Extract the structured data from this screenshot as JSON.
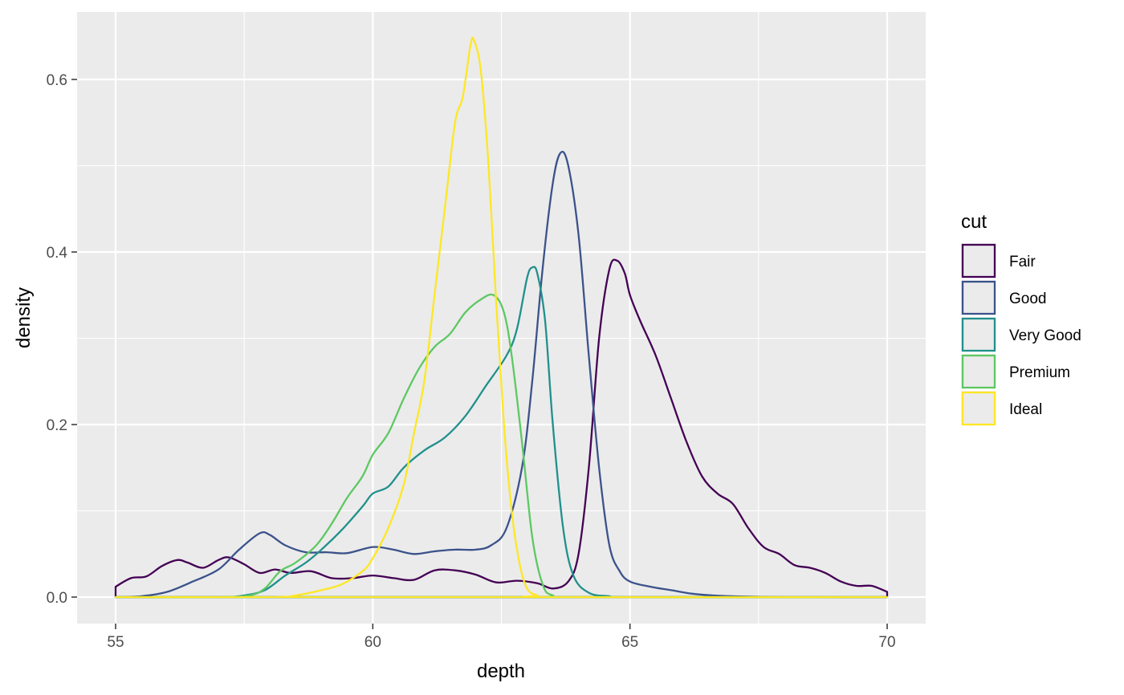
{
  "chart_data": {
    "type": "line",
    "xlabel": "depth",
    "ylabel": "density",
    "xlim": [
      55,
      70
    ],
    "ylim": [
      0,
      0.65
    ],
    "x_ticks": [
      55,
      60,
      65,
      70
    ],
    "x_tick_labels": [
      "55",
      "60",
      "65",
      "70"
    ],
    "y_ticks": [
      0.0,
      0.2,
      0.4,
      0.6
    ],
    "y_tick_labels": [
      "0.0",
      "0.2",
      "0.4",
      "0.6"
    ],
    "grid": true,
    "legend": {
      "title": "cut",
      "placement": "right"
    },
    "series": [
      {
        "name": "Fair",
        "color": "#440154",
        "points": [
          [
            55,
            0.012
          ],
          [
            55.3,
            0.022
          ],
          [
            55.6,
            0.024
          ],
          [
            55.9,
            0.036
          ],
          [
            56.2,
            0.043
          ],
          [
            56.4,
            0.04
          ],
          [
            56.7,
            0.034
          ],
          [
            57.0,
            0.043
          ],
          [
            57.2,
            0.046
          ],
          [
            57.5,
            0.038
          ],
          [
            57.8,
            0.028
          ],
          [
            58.1,
            0.032
          ],
          [
            58.4,
            0.028
          ],
          [
            58.8,
            0.03
          ],
          [
            59.2,
            0.022
          ],
          [
            59.6,
            0.022
          ],
          [
            60.0,
            0.025
          ],
          [
            60.4,
            0.022
          ],
          [
            60.8,
            0.02
          ],
          [
            61.2,
            0.031
          ],
          [
            61.6,
            0.031
          ],
          [
            62.0,
            0.026
          ],
          [
            62.4,
            0.017
          ],
          [
            62.8,
            0.019
          ],
          [
            63.2,
            0.016
          ],
          [
            63.5,
            0.01
          ],
          [
            63.8,
            0.018
          ],
          [
            64.0,
            0.05
          ],
          [
            64.2,
            0.15
          ],
          [
            64.4,
            0.3
          ],
          [
            64.6,
            0.38
          ],
          [
            64.75,
            0.39
          ],
          [
            64.9,
            0.375
          ],
          [
            65.0,
            0.35
          ],
          [
            65.2,
            0.32
          ],
          [
            65.5,
            0.28
          ],
          [
            65.8,
            0.23
          ],
          [
            66.1,
            0.18
          ],
          [
            66.4,
            0.14
          ],
          [
            66.7,
            0.12
          ],
          [
            67.0,
            0.108
          ],
          [
            67.3,
            0.08
          ],
          [
            67.6,
            0.058
          ],
          [
            67.9,
            0.05
          ],
          [
            68.2,
            0.037
          ],
          [
            68.5,
            0.034
          ],
          [
            68.8,
            0.028
          ],
          [
            69.1,
            0.018
          ],
          [
            69.4,
            0.013
          ],
          [
            69.7,
            0.013
          ],
          [
            70,
            0.006
          ]
        ]
      },
      {
        "name": "Good",
        "color": "#3b528b",
        "points": [
          [
            55,
            0.0
          ],
          [
            55.5,
            0.001
          ],
          [
            56.0,
            0.006
          ],
          [
            56.5,
            0.018
          ],
          [
            57.0,
            0.032
          ],
          [
            57.4,
            0.055
          ],
          [
            57.8,
            0.074
          ],
          [
            58.0,
            0.072
          ],
          [
            58.3,
            0.06
          ],
          [
            58.7,
            0.052
          ],
          [
            59.1,
            0.052
          ],
          [
            59.5,
            0.051
          ],
          [
            60.0,
            0.058
          ],
          [
            60.4,
            0.055
          ],
          [
            60.8,
            0.05
          ],
          [
            61.2,
            0.053
          ],
          [
            61.6,
            0.055
          ],
          [
            62.0,
            0.055
          ],
          [
            62.3,
            0.06
          ],
          [
            62.6,
            0.08
          ],
          [
            62.9,
            0.15
          ],
          [
            63.1,
            0.25
          ],
          [
            63.3,
            0.38
          ],
          [
            63.5,
            0.48
          ],
          [
            63.65,
            0.515
          ],
          [
            63.8,
            0.5
          ],
          [
            64.0,
            0.42
          ],
          [
            64.2,
            0.28
          ],
          [
            64.4,
            0.15
          ],
          [
            64.6,
            0.06
          ],
          [
            64.8,
            0.03
          ],
          [
            65.0,
            0.018
          ],
          [
            65.4,
            0.012
          ],
          [
            65.8,
            0.008
          ],
          [
            66.2,
            0.004
          ],
          [
            66.6,
            0.002
          ],
          [
            67,
            0.001
          ],
          [
            68,
            0.0
          ],
          [
            70,
            0.0
          ]
        ]
      },
      {
        "name": "Very Good",
        "color": "#21908c",
        "points": [
          [
            55,
            0.0
          ],
          [
            57.0,
            0.0
          ],
          [
            57.5,
            0.002
          ],
          [
            57.9,
            0.008
          ],
          [
            58.3,
            0.025
          ],
          [
            58.7,
            0.04
          ],
          [
            59.0,
            0.055
          ],
          [
            59.4,
            0.078
          ],
          [
            59.8,
            0.105
          ],
          [
            60.0,
            0.12
          ],
          [
            60.3,
            0.128
          ],
          [
            60.6,
            0.15
          ],
          [
            61.0,
            0.17
          ],
          [
            61.4,
            0.185
          ],
          [
            61.8,
            0.21
          ],
          [
            62.2,
            0.245
          ],
          [
            62.6,
            0.28
          ],
          [
            62.8,
            0.31
          ],
          [
            63.0,
            0.37
          ],
          [
            63.1,
            0.382
          ],
          [
            63.2,
            0.375
          ],
          [
            63.35,
            0.32
          ],
          [
            63.5,
            0.2
          ],
          [
            63.7,
            0.08
          ],
          [
            63.9,
            0.025
          ],
          [
            64.2,
            0.005
          ],
          [
            64.6,
            0.001
          ],
          [
            65,
            0.0
          ],
          [
            70,
            0.0
          ]
        ]
      },
      {
        "name": "Premium",
        "color": "#5dc863",
        "points": [
          [
            55,
            0.0
          ],
          [
            57.0,
            0.0
          ],
          [
            57.6,
            0.002
          ],
          [
            57.9,
            0.01
          ],
          [
            58.2,
            0.03
          ],
          [
            58.5,
            0.04
          ],
          [
            58.9,
            0.06
          ],
          [
            59.2,
            0.085
          ],
          [
            59.5,
            0.115
          ],
          [
            59.8,
            0.14
          ],
          [
            60.0,
            0.165
          ],
          [
            60.3,
            0.19
          ],
          [
            60.6,
            0.23
          ],
          [
            60.9,
            0.265
          ],
          [
            61.2,
            0.29
          ],
          [
            61.5,
            0.305
          ],
          [
            61.8,
            0.33
          ],
          [
            62.1,
            0.345
          ],
          [
            62.35,
            0.35
          ],
          [
            62.55,
            0.33
          ],
          [
            62.7,
            0.28
          ],
          [
            62.9,
            0.18
          ],
          [
            63.1,
            0.07
          ],
          [
            63.3,
            0.015
          ],
          [
            63.5,
            0.002
          ],
          [
            64,
            0.0
          ],
          [
            70,
            0.0
          ]
        ]
      },
      {
        "name": "Ideal",
        "color": "#fde725",
        "points": [
          [
            55,
            0.0
          ],
          [
            58.0,
            0.0
          ],
          [
            58.5,
            0.002
          ],
          [
            59.0,
            0.008
          ],
          [
            59.4,
            0.015
          ],
          [
            59.8,
            0.03
          ],
          [
            60.0,
            0.045
          ],
          [
            60.3,
            0.08
          ],
          [
            60.6,
            0.13
          ],
          [
            60.8,
            0.19
          ],
          [
            61.0,
            0.25
          ],
          [
            61.2,
            0.35
          ],
          [
            61.4,
            0.45
          ],
          [
            61.6,
            0.55
          ],
          [
            61.75,
            0.58
          ],
          [
            61.9,
            0.64
          ],
          [
            61.97,
            0.645
          ],
          [
            62.1,
            0.61
          ],
          [
            62.25,
            0.5
          ],
          [
            62.4,
            0.34
          ],
          [
            62.55,
            0.2
          ],
          [
            62.7,
            0.1
          ],
          [
            62.85,
            0.04
          ],
          [
            63.0,
            0.01
          ],
          [
            63.2,
            0.002
          ],
          [
            63.5,
            0.0
          ],
          [
            70,
            0.0
          ]
        ]
      }
    ]
  }
}
